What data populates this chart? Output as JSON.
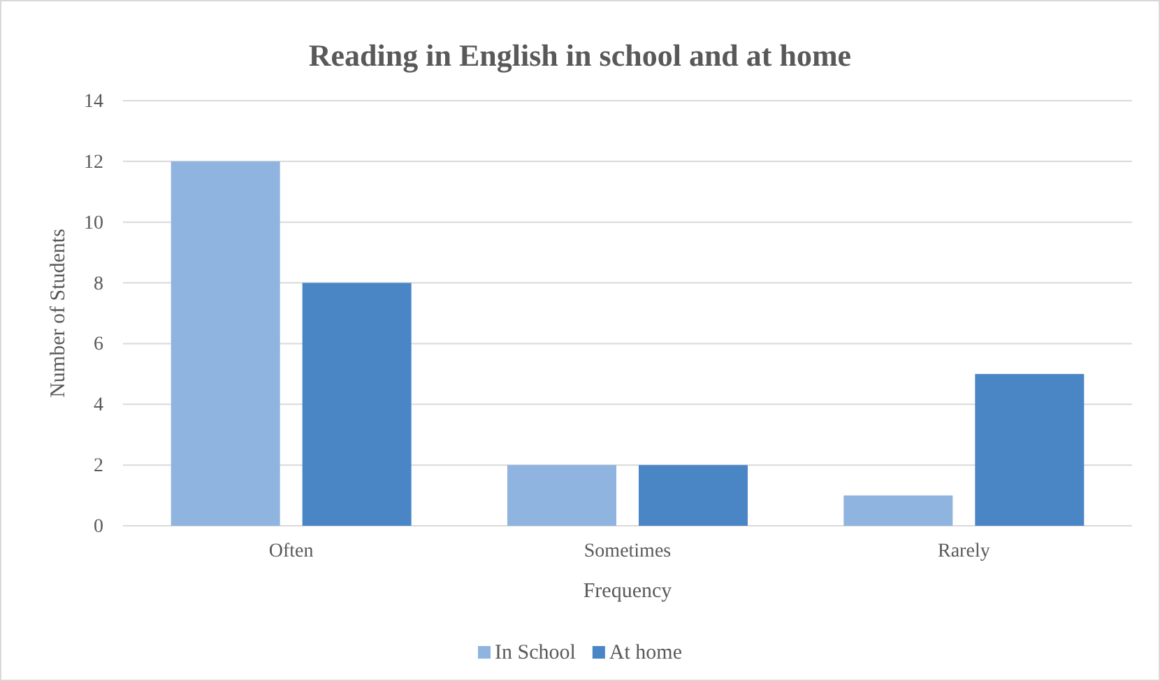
{
  "chart_data": {
    "type": "bar",
    "title": "Reading in English in school and at home",
    "xlabel": "Frequency",
    "ylabel": "Number of Students",
    "categories": [
      "Often",
      "Sometimes",
      "Rarely"
    ],
    "series": [
      {
        "name": "In School",
        "color": "#8fb4e0",
        "values": [
          12,
          2,
          1
        ]
      },
      {
        "name": "At home",
        "color": "#4a86c5",
        "values": [
          8,
          2,
          5
        ]
      }
    ],
    "ylim": [
      0,
      14
    ],
    "yticks": [
      0,
      2,
      4,
      6,
      8,
      10,
      12,
      14
    ],
    "grid": "y",
    "legend": "bottom"
  }
}
